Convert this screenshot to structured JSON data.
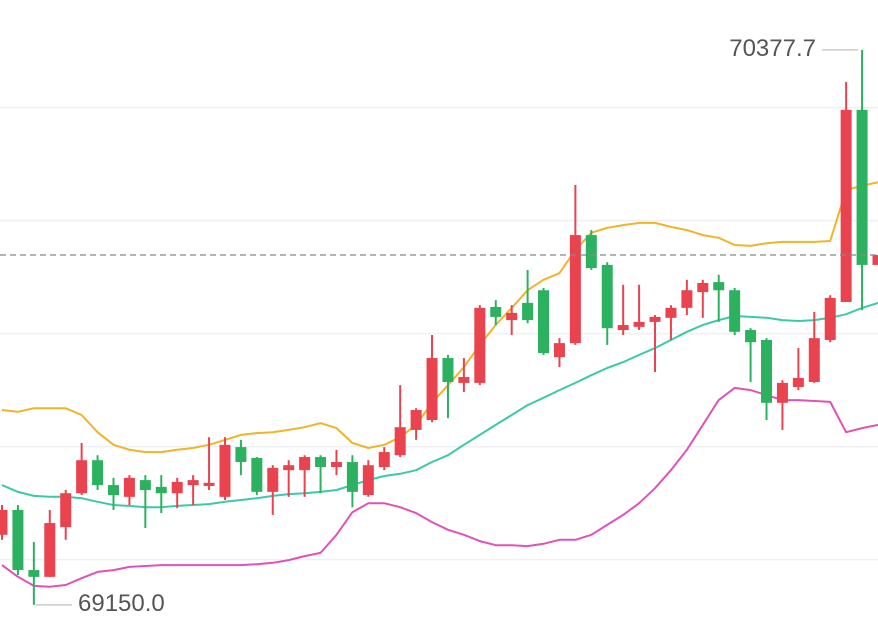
{
  "chart_data": {
    "type": "candlestick",
    "ylim": [
      69090,
      70488
    ],
    "grid_lines": [
      70250,
      70000,
      69750,
      69500,
      69250
    ],
    "up_color": "#e8434f",
    "down_color": "#2cb160",
    "open": [
      69305,
      69360,
      69227,
      69212,
      69322,
      69397,
      69470,
      69415,
      69389,
      69426,
      69411,
      69397,
      69415,
      69413,
      69389,
      69499,
      69475,
      69400,
      69448,
      69448,
      69477,
      69455,
      69466,
      69393,
      69455,
      69481,
      69537,
      69559,
      69696,
      69641,
      69641,
      69809,
      69780,
      69818,
      69846,
      69698,
      69729,
      69968,
      69902,
      69758,
      69765,
      69776,
      69785,
      69807,
      69842,
      69864,
      69846,
      69758,
      69736,
      69597,
      69632,
      69643,
      69736,
      69820,
      70245,
      69902
    ],
    "high": [
      69371,
      69371,
      69289,
      69360,
      69404,
      69508,
      69481,
      69431,
      69437,
      69437,
      69437,
      69431,
      69437,
      69521,
      69521,
      69515,
      69477,
      69459,
      69470,
      69481,
      69481,
      69493,
      69481,
      69470,
      69499,
      69636,
      69585,
      69747,
      69703,
      69696,
      69813,
      69824,
      69813,
      69891,
      69851,
      69740,
      70079,
      69979,
      69908,
      69858,
      69858,
      69791,
      69813,
      69869,
      69869,
      69880,
      69851,
      69762,
      69740,
      69647,
      69718,
      69798,
      69835,
      70307,
      70377.7,
      69924
    ],
    "low": [
      69294,
      69216,
      69150.0,
      69212,
      69294,
      69393,
      69404,
      69360,
      69371,
      69320,
      69353,
      69364,
      69371,
      69404,
      69382,
      69437,
      69393,
      69349,
      69389,
      69389,
      69397,
      69437,
      69366,
      69389,
      69448,
      69477,
      69515,
      69554,
      69563,
      69621,
      69636,
      69769,
      69747,
      69773,
      69703,
      69676,
      69725,
      69891,
      69725,
      69747,
      69758,
      69665,
      69736,
      69791,
      69785,
      69776,
      69747,
      69643,
      69559,
      69537,
      69625,
      69641,
      69731,
      69820,
      69802,
      69902
    ],
    "close": [
      69360,
      69227,
      69212,
      69331,
      69397,
      69470,
      69415,
      69393,
      69431,
      69404,
      69397,
      69422,
      69426,
      69420,
      69504,
      69466,
      69400,
      69453,
      69459,
      69477,
      69455,
      69466,
      69400,
      69459,
      69488,
      69543,
      69581,
      69696,
      69643,
      69654,
      69807,
      69787,
      69796,
      69780,
      69707,
      69729,
      69968,
      69895,
      69762,
      69769,
      69776,
      69787,
      69807,
      69846,
      69862,
      69846,
      69754,
      69731,
      69597,
      69641,
      69652,
      69740,
      69829,
      70245,
      69902,
      69924
    ],
    "bands": [
      {
        "color": "#f0b429",
        "values": [
          69581,
          69577,
          69585,
          69585,
          69585,
          69570,
          69532,
          69504,
          69493,
          69488,
          69488,
          69493,
          69497,
          69504,
          69515,
          69526,
          69530,
          69532,
          69537,
          69543,
          69552,
          69541,
          69508,
          69497,
          69504,
          69521,
          69548,
          69597,
          69636,
          69676,
          69725,
          69769,
          69807,
          69846,
          69869,
          69884,
          69935,
          69973,
          69984,
          69990,
          69995,
          69995,
          69986,
          69979,
          69968,
          69962,
          69946,
          69944,
          69950,
          69953,
          69953,
          69953,
          69955,
          70068,
          70077,
          70085
        ]
      },
      {
        "color": "#3cc9a9",
        "values": [
          69415,
          69400,
          69391,
          69389,
          69389,
          69386,
          69378,
          69371,
          69369,
          69366,
          69366,
          69369,
          69371,
          69373,
          69378,
          69382,
          69386,
          69391,
          69395,
          69397,
          69400,
          69404,
          69415,
          69426,
          69435,
          69440,
          69448,
          69466,
          69481,
          69504,
          69526,
          69548,
          69570,
          69592,
          69608,
          69625,
          69641,
          69658,
          69674,
          69687,
          69703,
          69718,
          69736,
          69754,
          69769,
          69780,
          69789,
          69787,
          69785,
          69780,
          69778,
          69780,
          69785,
          69793,
          69807,
          69818
        ]
      },
      {
        "color": "#e052b9",
        "values": [
          69238,
          69212,
          69192,
          69190,
          69194,
          69209,
          69223,
          69227,
          69234,
          69236,
          69238,
          69238,
          69238,
          69238,
          69238,
          69238,
          69240,
          69243,
          69249,
          69258,
          69265,
          69305,
          69355,
          69375,
          69375,
          69366,
          69353,
          69333,
          69316,
          69305,
          69291,
          69282,
          69282,
          69280,
          69285,
          69294,
          69294,
          69305,
          69327,
          69349,
          69375,
          69408,
          69448,
          69493,
          69548,
          69603,
          69630,
          69625,
          69614,
          69603,
          69603,
          69601,
          69599,
          69532,
          69541,
          69548
        ]
      }
    ],
    "last_price": 69924,
    "annotations": [
      {
        "label": "70377.7",
        "value": 70377.7
      },
      {
        "label": "69150.0",
        "value": 69150.0
      }
    ]
  }
}
